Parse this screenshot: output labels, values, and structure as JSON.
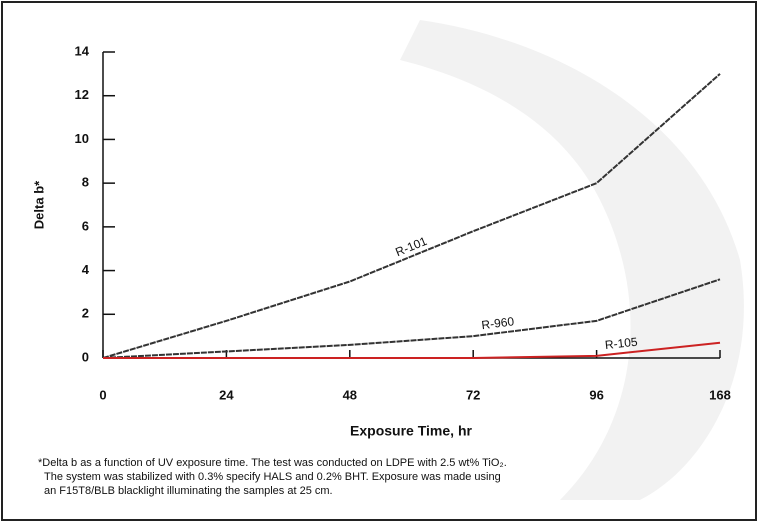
{
  "chart_data": {
    "type": "line",
    "x_label": "Exposure Time, hr",
    "y_label": "Delta b*",
    "categories": [
      "0",
      "24",
      "48",
      "72",
      "96",
      "168"
    ],
    "series": [
      {
        "name": "R-101",
        "color": "#333333",
        "values": [
          0,
          1.7,
          3.5,
          5.8,
          8,
          13
        ]
      },
      {
        "name": "R-960",
        "color": "#333333",
        "values": [
          0,
          0.3,
          0.6,
          1.0,
          1.7,
          3.6
        ]
      },
      {
        "name": "R-105",
        "color": "#cc2222",
        "values": [
          0,
          0,
          0,
          0,
          0.1,
          0.7
        ]
      }
    ],
    "ylim": [
      0,
      14
    ],
    "yticks": [
      0,
      2,
      4,
      6,
      8,
      10,
      12,
      14
    ],
    "footnote": [
      "*Delta b as a function of UV exposure time. The test was conducted on LDPE with 2.5 wt% TiO₂.",
      "The system was stabilized with 0.3% specify HALS and 0.2% BHT. Exposure was made using",
      "an F15T8/BLB blacklight illuminating the samples at 25 cm."
    ]
  }
}
